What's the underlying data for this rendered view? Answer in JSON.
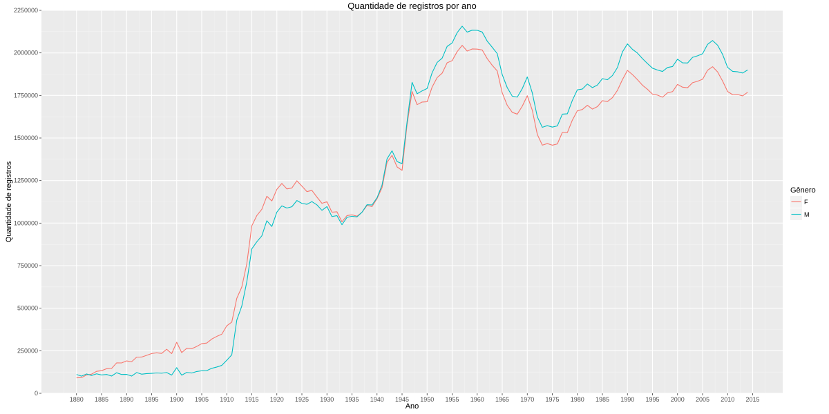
{
  "chart_data": {
    "type": "line",
    "title": "Quantidade de registros por ano",
    "xlabel": "Ano",
    "ylabel": "Quantidade de registros",
    "xlim": [
      1873,
      2021
    ],
    "ylim": [
      0,
      2250000
    ],
    "x_ticks": [
      "1880",
      "1885",
      "1890",
      "1895",
      "1900",
      "1905",
      "1910",
      "1915",
      "1920",
      "1925",
      "1930",
      "1935",
      "1940",
      "1945",
      "1950",
      "1955",
      "1960",
      "1965",
      "1970",
      "1975",
      "1980",
      "1985",
      "1990",
      "1995",
      "2000",
      "2005",
      "2010",
      "2015"
    ],
    "y_ticks": [
      "0",
      "250000",
      "500000",
      "750000",
      "1000000",
      "1250000",
      "1500000",
      "1750000",
      "2000000",
      "2250000"
    ],
    "grid": true,
    "legend": {
      "title": "Gênero",
      "placement": "right"
    },
    "x": [
      1880,
      1881,
      1882,
      1883,
      1884,
      1885,
      1886,
      1887,
      1888,
      1889,
      1890,
      1891,
      1892,
      1893,
      1894,
      1895,
      1896,
      1897,
      1898,
      1899,
      1900,
      1901,
      1902,
      1903,
      1904,
      1905,
      1906,
      1907,
      1908,
      1909,
      1910,
      1911,
      1912,
      1913,
      1914,
      1915,
      1916,
      1917,
      1918,
      1919,
      1920,
      1921,
      1922,
      1923,
      1924,
      1925,
      1926,
      1927,
      1928,
      1929,
      1930,
      1931,
      1932,
      1933,
      1934,
      1935,
      1936,
      1937,
      1938,
      1939,
      1940,
      1941,
      1942,
      1943,
      1944,
      1945,
      1946,
      1947,
      1948,
      1949,
      1950,
      1951,
      1952,
      1953,
      1954,
      1955,
      1956,
      1957,
      1958,
      1959,
      1960,
      1961,
      1962,
      1963,
      1964,
      1965,
      1966,
      1967,
      1968,
      1969,
      1970,
      1971,
      1972,
      1973,
      1974,
      1975,
      1976,
      1977,
      1978,
      1979,
      1980,
      1981,
      1982,
      1983,
      1984,
      1985,
      1986,
      1987,
      1988,
      1989,
      1990,
      1991,
      1992,
      1993,
      1994,
      1995,
      1996,
      1997,
      1998,
      1999,
      2000,
      2001,
      2002,
      2003,
      2004,
      2005,
      2006,
      2007,
      2008,
      2009,
      2010,
      2011,
      2012,
      2013,
      2014
    ],
    "series": [
      {
        "name": "F",
        "color": "#F8766D",
        "values": [
          90993,
          91954,
          107850,
          112321,
          129022,
          133055,
          144535,
          145982,
          178627,
          178366,
          190377,
          185482,
          212346,
          212906,
          222922,
          233630,
          237919,
          234202,
          258770,
          233022,
          299822,
          239351,
          264079,
          261974,
          275375,
          291639,
          295301,
          318558,
          334277,
          347191,
          396416,
          418180,
          557939,
          624317,
          761376,
          983824,
          1044249,
          1081194,
          1157585,
          1130149,
          1198214,
          1232845,
          1200796,
          1206239,
          1248821,
          1217270,
          1185078,
          1192207,
          1152836,
          1116284,
          1125521,
          1064174,
          1066412,
          1007527,
          1044248,
          1048395,
          1040892,
          1063459,
          1103757,
          1096587,
          1143386,
          1207799,
          1356822,
          1398451,
          1330209,
          1309717,
          1579002,
          1773108,
          1695908,
          1711136,
          1713259,
          1799049,
          1854812,
          1880669,
          1941743,
          1954777,
          2007524,
          2044160,
          2010884,
          2023044,
          2022121,
          2017316,
          1966457,
          1927177,
          1894262,
          1765131,
          1691856,
          1650717,
          1640103,
          1686916,
          1748202,
          1663434,
          1521163,
          1458049,
          1467281,
          1457792,
          1465091,
          1532922,
          1531687,
          1605016,
          1659930,
          1667463,
          1692434,
          1669926,
          1684245,
          1719393,
          1714091,
          1736751,
          1780032,
          1843135,
          1897156,
          1872396,
          1842698,
          1809949,
          1786101,
          1757935,
          1751944,
          1739738,
          1765256,
          1772570,
          1814922,
          1798588,
          1795225,
          1824876,
          1833585,
          1845302,
          1898216,
          1918847,
          1888148,
          1834596,
          1773238,
          1754368,
          1755282,
          1747541,
          1768775
        ]
      },
      {
        "name": "M",
        "color": "#00BFC4",
        "values": [
          110491,
          100745,
          113688,
          104629,
          114445,
          107800,
          110785,
          101414,
          120853,
          110584,
          111025,
          101196,
          122037,
          112319,
          115773,
          117396,
          119568,
          118097,
          122164,
          106964,
          150554,
          106478,
          122660,
          119242,
          128126,
          132319,
          133160,
          146833,
          154339,
          163983,
          194209,
          225944,
          429929,
          512482,
          654746,
          848647,
          890142,
          925011,
          1013720,
          980158,
          1064568,
          1101395,
          1088380,
          1096223,
          1132671,
          1115798,
          1110440,
          1126259,
          1107113,
          1075090,
          1097097,
          1038586,
          1043882,
          990658,
          1033398,
          1040710,
          1036212,
          1063920,
          1108058,
          1106658,
          1148679,
          1223119,
          1377659,
          1424804,
          1361769,
          1349224,
          1595208,
          1826953,
          1760004,
          1776883,
          1790865,
          1883393,
          1943950,
          1968949,
          2038150,
          2058755,
          2118930,
          2157079,
          2122062,
          2133702,
          2132809,
          2122498,
          2068976,
          2033115,
          1995939,
          1872158,
          1795989,
          1745755,
          1740200,
          1790062,
          1858992,
          1765232,
          1624938,
          1562883,
          1572700,
          1564095,
          1571010,
          1640010,
          1641999,
          1721153,
          1783239,
          1787733,
          1817120,
          1796111,
          1811158,
          1849073,
          1842146,
          1866917,
          1913998,
          2006051,
          2052860,
          2020934,
          1998806,
          1966195,
          1937231,
          1910193,
          1899232,
          1891037,
          1914110,
          1919820,
          1962821,
          1941758,
          1940526,
          1973893,
          1982945,
          1994994,
          2050234,
          2072757,
          2045211,
          1990812,
          1914629,
          1891569,
          1888809,
          1881856,
          1899883
        ]
      }
    ]
  }
}
